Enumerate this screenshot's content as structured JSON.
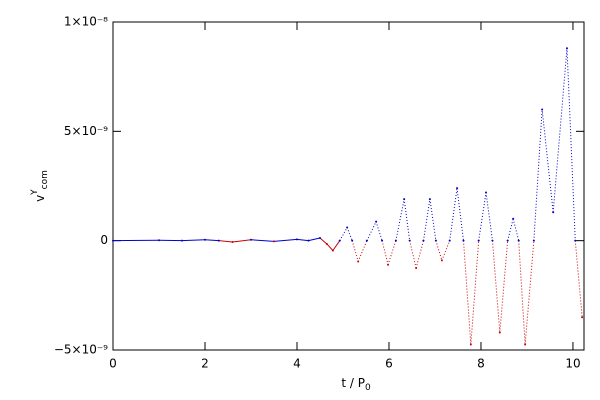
{
  "chart_data": {
    "type": "scatter",
    "x_label": {
      "text": "t / P",
      "sub": "0"
    },
    "y_label": {
      "text": "v",
      "sup": "Y",
      "sub": "com"
    },
    "xlim": [
      0,
      10.24
    ],
    "ylim": [
      -5e-09,
      1e-08
    ],
    "xticks": [
      0,
      2,
      4,
      6,
      8,
      10
    ],
    "yticks": [
      {
        "value": -5e-09,
        "label": "−5×10⁻⁹"
      },
      {
        "value": 0,
        "label": "0"
      },
      {
        "value": 5e-09,
        "label": "5×10⁻⁹"
      },
      {
        "value": 1e-08,
        "label": "1×10⁻⁸"
      }
    ],
    "color_positive": "#0000cc",
    "color_negative": "#cc0000",
    "x": [
      0,
      1,
      1.5,
      2,
      2.3,
      2.6,
      3,
      3.5,
      4,
      4.25,
      4.5,
      4.65,
      4.78,
      4.93,
      5.09,
      5.2,
      5.33,
      5.52,
      5.72,
      5.85,
      5.98,
      6.15,
      6.33,
      6.45,
      6.59,
      6.75,
      6.89,
      7.02,
      7.15,
      7.32,
      7.48,
      7.62,
      7.78,
      7.95,
      8.11,
      8.25,
      8.41,
      8.58,
      8.7,
      8.82,
      8.96,
      9.15,
      9.33,
      9.57,
      9.87,
      10.05,
      10.2
    ],
    "values": [
      0,
      2e-11,
      0,
      4e-11,
      0,
      -6e-11,
      4e-11,
      -3e-11,
      6e-11,
      0,
      1.2e-10,
      -1.5e-10,
      -4.5e-10,
      0,
      6e-10,
      0,
      -9.5e-10,
      0,
      8.7e-10,
      0,
      -1.1e-09,
      0,
      1.9e-09,
      0,
      -1.25e-09,
      0,
      1.9e-09,
      0,
      -9e-10,
      0,
      2.4e-09,
      0,
      -4.75e-09,
      0,
      2.2e-09,
      0,
      -4.2e-09,
      0,
      1e-09,
      0,
      -4.75e-09,
      0,
      6e-09,
      1.3e-09,
      8.8e-09,
      0,
      -3.5e-09
    ]
  }
}
